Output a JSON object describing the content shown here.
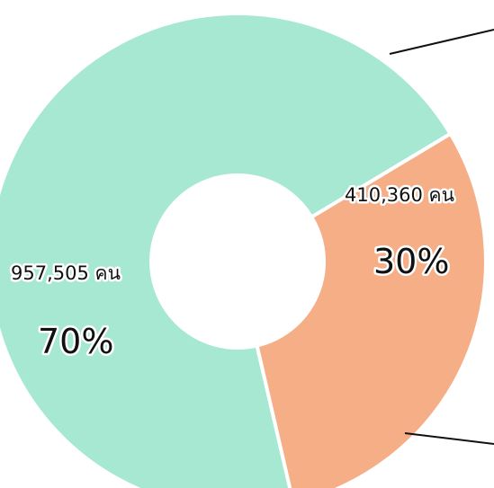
{
  "chart_data": {
    "type": "pie",
    "variant": "donut",
    "slices": [
      {
        "value": 957505,
        "percent": 70,
        "value_label": "957,505 คน",
        "percent_label": "70%",
        "color": "#a6e8d2"
      },
      {
        "value": 410360,
        "percent": 30,
        "value_label": "410,360 คน",
        "percent_label": "30%",
        "color": "#f5ae86"
      }
    ],
    "slice_separator_color": "#ffffff",
    "leader_line_color": "#111111"
  }
}
